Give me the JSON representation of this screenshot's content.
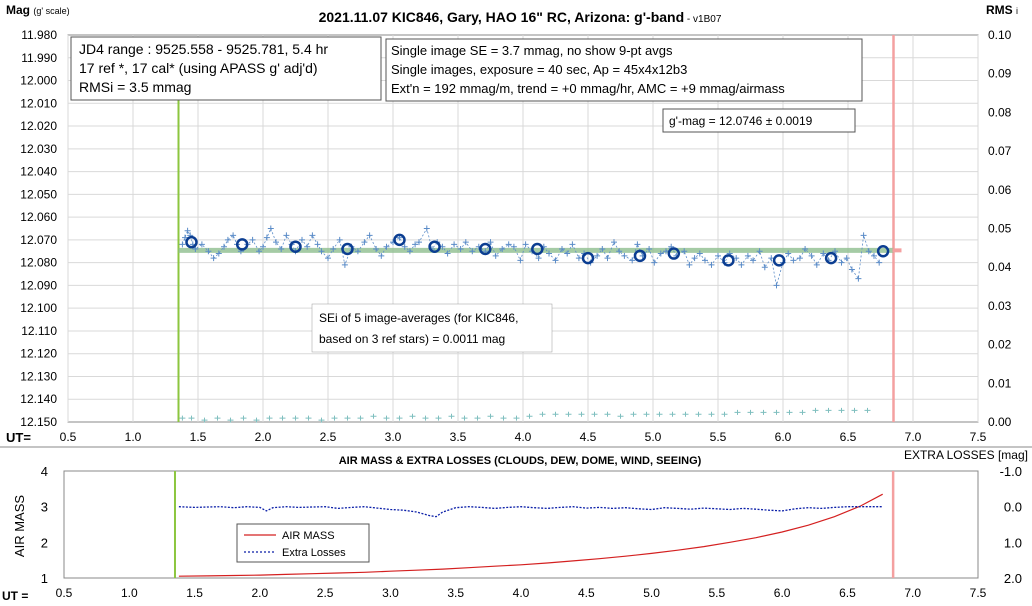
{
  "chart_data": [
    {
      "type": "scatter",
      "title": "2021.11.07 KIC846, Gary, HAO 16\" RC, Arizona: g'-band",
      "title_suffix": " - v1B07",
      "ylabel_left": "Mag",
      "ylabel_left_sub": "(g' scale)",
      "ylabel_right": "RMS",
      "ylabel_right_sub": "i",
      "xlabel": "UT=",
      "x_ticks": [
        "0.5",
        "1.0",
        "1.5",
        "2.0",
        "2.5",
        "3.0",
        "3.5",
        "4.0",
        "4.5",
        "5.0",
        "5.5",
        "6.0",
        "6.5",
        "7.0",
        "7.5"
      ],
      "y_ticks": [
        "11.980",
        "11.990",
        "12.000",
        "12.010",
        "12.020",
        "12.030",
        "12.040",
        "12.050",
        "12.060",
        "12.070",
        "12.080",
        "12.090",
        "12.100",
        "12.110",
        "12.120",
        "12.130",
        "12.140",
        "12.150"
      ],
      "y2_ticks": [
        "0.10",
        "0.09",
        "0.08",
        "0.07",
        "0.06",
        "0.05",
        "0.04",
        "0.03",
        "0.02",
        "0.01",
        "0.00"
      ],
      "xlim": [
        0.5,
        7.5
      ],
      "ylim": [
        12.15,
        11.98
      ],
      "y2lim": [
        0.0,
        0.1
      ],
      "grid": true,
      "markers": {
        "start_ut": 1.35,
        "end_ut": 6.85
      },
      "series": [
        {
          "name": "",
          "style": "single images",
          "color": "#5b8cc8",
          "x": [
            1.38,
            1.4,
            1.42,
            1.44,
            1.46,
            1.48,
            1.53,
            1.58,
            1.62,
            1.66,
            1.7,
            1.73,
            1.77,
            1.8,
            1.83,
            1.88,
            1.92,
            1.97,
            2.0,
            2.03,
            2.06,
            2.1,
            2.14,
            2.18,
            2.22,
            2.25,
            2.3,
            2.34,
            2.38,
            2.42,
            2.45,
            2.5,
            2.54,
            2.59,
            2.63,
            2.68,
            2.73,
            2.78,
            2.82,
            2.87,
            2.91,
            2.95,
            3.0,
            3.05,
            3.09,
            3.13,
            3.17,
            3.2,
            3.26,
            3.3,
            3.34,
            3.38,
            3.42,
            3.47,
            3.52,
            3.56,
            3.61,
            3.66,
            3.71,
            3.75,
            3.79,
            3.84,
            3.89,
            3.93,
            3.98,
            4.02,
            4.07,
            4.12,
            4.16,
            4.2,
            4.25,
            4.3,
            4.34,
            4.38,
            4.43,
            4.47,
            4.52,
            4.57,
            4.61,
            4.65,
            4.7,
            4.74,
            4.78,
            4.84,
            4.88,
            4.92,
            4.97,
            5.01,
            5.06,
            5.1,
            5.14,
            5.18,
            5.24,
            5.28,
            5.32,
            5.36,
            5.4,
            5.45,
            5.5,
            5.55,
            5.59,
            5.64,
            5.68,
            5.73,
            5.77,
            5.82,
            5.86,
            5.91,
            5.95,
            6.0,
            6.04,
            6.08,
            6.13,
            6.17,
            6.22,
            6.26,
            6.31,
            6.35,
            6.4,
            6.45,
            6.49,
            6.53,
            6.58,
            6.62,
            6.66,
            6.7,
            6.74
          ],
          "y": [
            12.072,
            12.069,
            12.066,
            12.068,
            12.072,
            12.074,
            12.072,
            12.075,
            12.078,
            12.076,
            12.073,
            12.07,
            12.068,
            12.072,
            12.075,
            12.072,
            12.07,
            12.075,
            12.073,
            12.069,
            12.065,
            12.071,
            12.074,
            12.068,
            12.072,
            12.075,
            12.07,
            12.073,
            12.068,
            12.072,
            12.075,
            12.078,
            12.074,
            12.07,
            12.081,
            12.073,
            12.075,
            12.071,
            12.068,
            12.074,
            12.077,
            12.073,
            12.071,
            12.069,
            12.073,
            12.075,
            12.072,
            12.071,
            12.065,
            12.074,
            12.071,
            12.073,
            12.076,
            12.072,
            12.074,
            12.071,
            12.075,
            12.073,
            12.075,
            12.071,
            12.077,
            12.074,
            12.072,
            12.073,
            12.079,
            12.072,
            12.075,
            12.078,
            12.073,
            12.076,
            12.079,
            12.074,
            12.076,
            12.072,
            12.078,
            12.076,
            12.08,
            12.077,
            12.074,
            12.078,
            12.071,
            12.075,
            12.077,
            12.079,
            12.072,
            12.077,
            12.074,
            12.08,
            12.076,
            12.075,
            12.073,
            12.077,
            12.075,
            12.081,
            12.078,
            12.076,
            12.079,
            12.081,
            12.077,
            12.08,
            12.076,
            12.078,
            12.081,
            12.077,
            12.079,
            12.075,
            12.082,
            12.078,
            12.09,
            12.08,
            12.076,
            12.079,
            12.078,
            12.074,
            12.077,
            12.081,
            12.076,
            12.079,
            12.075,
            12.08,
            12.078,
            12.083,
            12.087,
            12.068,
            12.075,
            12.077,
            12.08
          ]
        },
        {
          "name": "",
          "style": "9-pt averages",
          "color": "#0b3d91",
          "x": [
            1.45,
            1.84,
            2.25,
            2.65,
            3.05,
            3.32,
            3.71,
            4.11,
            4.5,
            4.9,
            5.16,
            5.58,
            5.97,
            6.37,
            6.77
          ],
          "y": [
            12.071,
            12.072,
            12.073,
            12.074,
            12.07,
            12.073,
            12.074,
            12.074,
            12.078,
            12.077,
            12.076,
            12.079,
            12.079,
            12.078,
            12.075
          ]
        },
        {
          "name": "",
          "style": "fitted trend",
          "color": "#5a9a5a",
          "x": [
            1.35,
            6.85
          ],
          "y": [
            12.0746,
            12.0746
          ]
        },
        {
          "name": "",
          "style": "RMSi (right axis)",
          "color": "#7fbfbf",
          "x": [
            1.38,
            1.45,
            1.55,
            1.65,
            1.75,
            1.85,
            1.95,
            2.05,
            2.15,
            2.25,
            2.35,
            2.45,
            2.55,
            2.65,
            2.75,
            2.85,
            2.95,
            3.05,
            3.15,
            3.25,
            3.35,
            3.45,
            3.55,
            3.65,
            3.75,
            3.85,
            3.95,
            4.05,
            4.15,
            4.25,
            4.35,
            4.45,
            4.55,
            4.65,
            4.75,
            4.85,
            4.95,
            5.05,
            5.15,
            5.25,
            5.35,
            5.45,
            5.55,
            5.65,
            5.75,
            5.85,
            5.95,
            6.05,
            6.15,
            6.25,
            6.35,
            6.45,
            6.55,
            6.65
          ],
          "y": [
            0.001,
            0.001,
            0.0005,
            0.001,
            0.0005,
            0.001,
            0.0005,
            0.001,
            0.001,
            0.001,
            0.001,
            0.0005,
            0.001,
            0.001,
            0.001,
            0.0015,
            0.001,
            0.001,
            0.0015,
            0.001,
            0.001,
            0.0015,
            0.001,
            0.001,
            0.0015,
            0.001,
            0.001,
            0.0015,
            0.002,
            0.002,
            0.002,
            0.002,
            0.002,
            0.002,
            0.0015,
            0.002,
            0.002,
            0.002,
            0.002,
            0.002,
            0.002,
            0.002,
            0.002,
            0.0025,
            0.0025,
            0.0025,
            0.0025,
            0.0025,
            0.0025,
            0.003,
            0.003,
            0.003,
            0.003,
            0.003
          ]
        }
      ],
      "annotations": {
        "box1": [
          "JD4 range : 9525.558 - 9525.781,  5.4  hr",
          "17 ref *, 17 cal* (using APASS g' adj'd)",
          "RMSi = 3.5 mmag"
        ],
        "box2": [
          "Single image SE = 3.7 mmag, no show  9-pt avgs",
          "Single images, exposure = 40 sec, Ap = 45x4x12b3",
          "Ext'n = 192 mmag/m, trend = +0 mmag/hr, AMC = +9 mmag/airmass"
        ],
        "box3": "g'-mag = 12.0746 ± 0.0019",
        "box4": [
          "SEi of 5 image-averages (for KIC846,",
          "based on 3 ref stars) = 0.0011 mag"
        ]
      }
    },
    {
      "type": "line",
      "title": "AIR MASS & EXTRA LOSSES (CLOUDS, DEW, DOME, WIND, SEEING)",
      "ylabel_left": "AIR MASS",
      "ylabel_right": "EXTRA LOSSES [mag]",
      "xlabel": "UT =",
      "x_ticks": [
        "0.5",
        "1.0",
        "1.5",
        "2.0",
        "2.5",
        "3.0",
        "3.5",
        "4.0",
        "4.5",
        "5.0",
        "5.5",
        "6.0",
        "6.5",
        "7.0",
        "7.5"
      ],
      "y_ticks": [
        "4",
        "3",
        "2",
        "1"
      ],
      "y2_ticks": [
        "-1.0",
        "0.0",
        "1.0",
        "2.0"
      ],
      "xlim": [
        0.5,
        7.5
      ],
      "ylim": [
        1,
        4
      ],
      "y2lim": [
        -1.0,
        2.0
      ],
      "markers": {
        "start_ut": 1.35,
        "end_ut": 6.85
      },
      "series": [
        {
          "name": "AIR MASS",
          "color": "#d42020",
          "x": [
            1.38,
            1.6,
            1.8,
            2.0,
            2.2,
            2.4,
            2.6,
            2.8,
            3.0,
            3.2,
            3.4,
            3.6,
            3.8,
            4.0,
            4.2,
            4.4,
            4.6,
            4.8,
            5.0,
            5.2,
            5.4,
            5.6,
            5.8,
            6.0,
            6.2,
            6.4,
            6.6,
            6.77
          ],
          "y": [
            1.05,
            1.06,
            1.07,
            1.08,
            1.1,
            1.12,
            1.14,
            1.16,
            1.19,
            1.22,
            1.25,
            1.29,
            1.33,
            1.37,
            1.42,
            1.48,
            1.54,
            1.61,
            1.69,
            1.78,
            1.88,
            2.0,
            2.13,
            2.29,
            2.48,
            2.72,
            3.02,
            3.35
          ]
        },
        {
          "name": "Extra Losses",
          "color": "#0b1fa8",
          "x": [
            1.38,
            1.5,
            1.6,
            1.7,
            1.8,
            1.9,
            2.0,
            2.05,
            2.1,
            2.2,
            2.3,
            2.4,
            2.5,
            2.6,
            2.7,
            2.8,
            2.9,
            3.0,
            3.1,
            3.2,
            3.3,
            3.35,
            3.4,
            3.5,
            3.6,
            3.7,
            3.8,
            3.9,
            4.0,
            4.1,
            4.2,
            4.3,
            4.4,
            4.5,
            4.6,
            4.7,
            4.8,
            4.9,
            5.0,
            5.1,
            5.2,
            5.3,
            5.4,
            5.5,
            5.6,
            5.7,
            5.8,
            5.9,
            6.0,
            6.1,
            6.2,
            6.3,
            6.4,
            6.5,
            6.6,
            6.77
          ],
          "y": [
            0.0,
            0.02,
            0.01,
            0.0,
            0.03,
            0.0,
            0.02,
            0.12,
            0.03,
            0.0,
            0.02,
            0.01,
            0.0,
            0.05,
            0.02,
            0.0,
            0.04,
            0.08,
            0.1,
            0.15,
            0.25,
            0.28,
            0.15,
            0.03,
            0.0,
            0.02,
            0.05,
            0.02,
            0.0,
            0.03,
            0.05,
            0.02,
            0.0,
            0.04,
            0.02,
            0.05,
            0.03,
            0.06,
            0.08,
            0.03,
            0.05,
            0.07,
            0.04,
            0.06,
            0.08,
            0.05,
            0.07,
            0.1,
            0.12,
            0.06,
            0.03,
            0.05,
            0.02,
            0.0,
            0.0,
            0.0
          ]
        }
      ]
    }
  ]
}
